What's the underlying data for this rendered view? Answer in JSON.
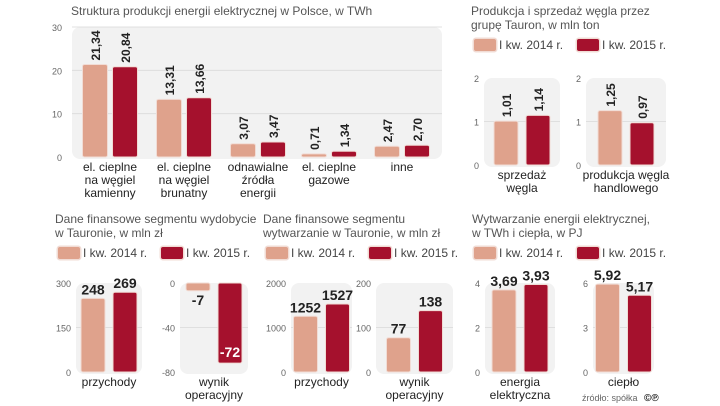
{
  "colors": {
    "y2014": "#dfa28c",
    "y2015": "#a5112d",
    "panel": "#f2f2f2",
    "grid": "#d9d9d9"
  },
  "source": "źródło: spółka",
  "logo": "©℗",
  "chart_data": [
    {
      "id": "c1",
      "type": "bar",
      "title": "Struktura produkcji energii elektrycznej w Polsce, w TWh",
      "legend": [
        "I kw. 2014",
        "I kw. 2015"
      ],
      "legend_position": "top-right",
      "categories": [
        "el. cieplne\nna węgiel\nkamienny",
        "el. cieplne\nna węgiel\nbrunatny",
        "odnawialne\nźródła\nenergii",
        "el. cieplne\ngazowe",
        "inne"
      ],
      "series": [
        {
          "name": "I kw. 2014",
          "values": [
            21.34,
            13.31,
            3.07,
            0.71,
            2.47
          ],
          "labels": [
            "21,34",
            "13,31",
            "3,07",
            "0,71",
            "2,47"
          ]
        },
        {
          "name": "I kw. 2015",
          "values": [
            20.84,
            13.66,
            3.47,
            1.34,
            2.7
          ],
          "labels": [
            "20,84",
            "13,66",
            "3,47",
            "1,34",
            "2,70"
          ]
        }
      ],
      "ylim": [
        0,
        30
      ],
      "yticks": [
        0,
        10,
        20,
        30
      ],
      "grid": true
    },
    {
      "id": "c2",
      "type": "bar",
      "title": "Produkcja i sprzedaż węgla przez\ngrupę Tauron, w mln ton",
      "legend": [
        "I kw. 2014 r.",
        "I kw. 2015 r."
      ],
      "legend_position": "top",
      "panels": [
        {
          "category": "sprzedaż\nwęgla",
          "values": [
            1.01,
            1.14
          ],
          "labels": [
            "1,01",
            "1,14"
          ],
          "ylim": [
            0,
            2
          ],
          "yticks": [
            0,
            1,
            2
          ]
        },
        {
          "category": "produkcja węgla\nhandlowego",
          "values": [
            1.25,
            0.97
          ],
          "labels": [
            "1,25",
            "0,97"
          ],
          "ylim": [
            0,
            2
          ],
          "yticks": [
            0,
            1,
            2
          ]
        }
      ]
    },
    {
      "id": "c3",
      "type": "bar",
      "title": "Dane finansowe segmentu wydobycie\nw Tauronie, w mln zł",
      "legend": [
        "I kw. 2014 r.",
        "I kw. 2015 r."
      ],
      "legend_position": "top",
      "panels": [
        {
          "category": "przychody",
          "values": [
            248,
            269
          ],
          "labels": [
            "248",
            "269"
          ],
          "ylim": [
            0,
            300
          ],
          "yticks": [
            0,
            150,
            300
          ]
        },
        {
          "category": "wynik\noperacyjny",
          "values": [
            -7,
            -72
          ],
          "labels": [
            "-7",
            "-72"
          ],
          "ylim": [
            -80,
            0
          ],
          "yticks": [
            0,
            -40,
            -80
          ]
        }
      ]
    },
    {
      "id": "c4",
      "type": "bar",
      "title": "Dane finansowe segmentu\nwytwarzanie w Tauronie, w mln zł",
      "legend": [
        "I kw. 2014 r.",
        "I kw. 2015 r."
      ],
      "legend_position": "top",
      "panels": [
        {
          "category": "przychody",
          "values": [
            1252,
            1527
          ],
          "labels": [
            "1252",
            "1527"
          ],
          "ylim": [
            0,
            2000
          ],
          "yticks": [
            0,
            1000,
            2000
          ]
        },
        {
          "category": "wynik\noperacyjny",
          "values": [
            77,
            138
          ],
          "labels": [
            "77",
            "138"
          ],
          "ylim": [
            0,
            200
          ],
          "yticks": [
            0,
            100,
            200
          ]
        }
      ]
    },
    {
      "id": "c5",
      "type": "bar",
      "title": "Wytwarzanie energii elektrycznej,\nw TWh i ciepła, w PJ",
      "legend": [
        "I kw. 2014 r.",
        "I kw. 2015 r."
      ],
      "legend_position": "top",
      "panels": [
        {
          "category": "energia\nelektryczna",
          "values": [
            3.69,
            3.93
          ],
          "labels": [
            "3,69",
            "3,93"
          ],
          "ylim": [
            0,
            4
          ],
          "yticks": [
            0,
            2,
            4
          ]
        },
        {
          "category": "ciepło",
          "values": [
            5.92,
            5.17
          ],
          "labels": [
            "5,92",
            "5,17"
          ],
          "ylim": [
            0,
            6
          ],
          "yticks": [
            0,
            3,
            6
          ]
        }
      ]
    }
  ]
}
